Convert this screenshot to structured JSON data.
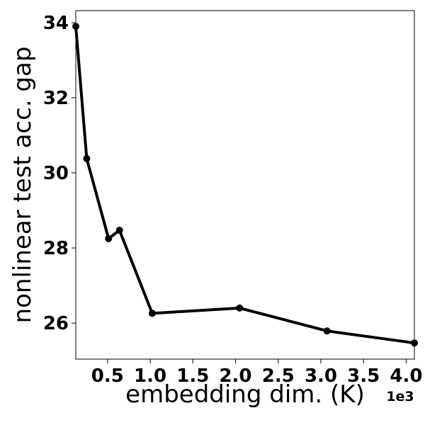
{
  "chart_data": {
    "type": "line",
    "xlabel": "embedding dim. (K)",
    "ylabel": "nonlinear test acc. gap",
    "x_offset_label": "1e3",
    "x": [
      0.128,
      0.256,
      0.512,
      0.64,
      1.024,
      2.048,
      3.072,
      4.096
    ],
    "series": [
      {
        "color": "#000000",
        "values": [
          33.9,
          30.38,
          28.25,
          28.47,
          26.26,
          26.4,
          25.79,
          25.47
        ]
      }
    ],
    "xlim": [
      0.128,
      4.096
    ],
    "xticks": [
      0.5,
      1.0,
      1.5,
      2.0,
      2.5,
      3.0,
      3.5,
      4.0
    ],
    "ylim": [
      25.04,
      34.32
    ],
    "yticks": [
      26,
      28,
      30,
      32,
      34
    ]
  }
}
